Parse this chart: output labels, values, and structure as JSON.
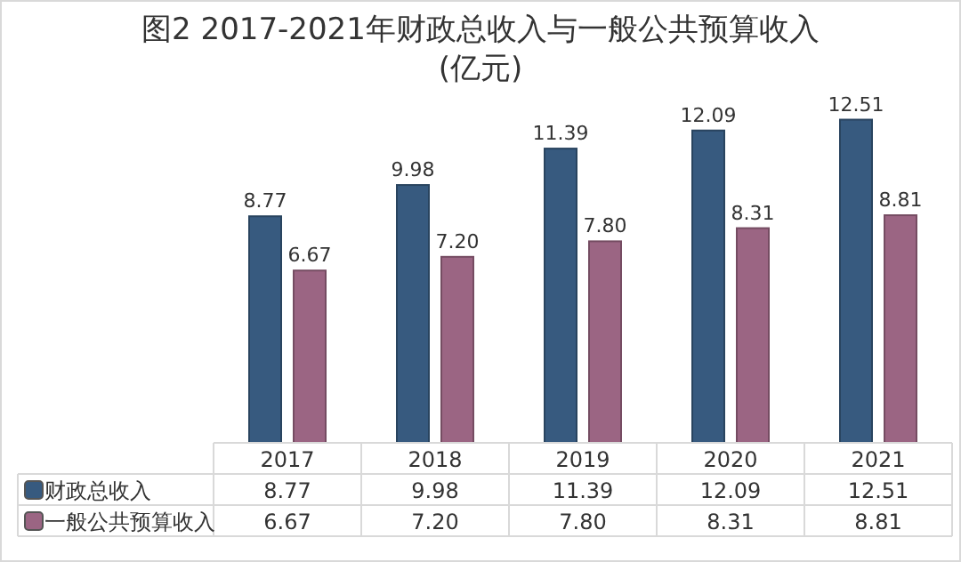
{
  "chart_data": {
    "type": "bar",
    "title": "图2 2017-2021年财政总收入与一般公共预算收入\n(亿元)",
    "categories": [
      "2017",
      "2018",
      "2019",
      "2020",
      "2021"
    ],
    "series": [
      {
        "name": "财政总收入",
        "color": "#375a7f",
        "values": [
          8.77,
          9.98,
          11.39,
          12.09,
          12.51
        ],
        "value_labels": [
          "8.77",
          "9.98",
          "11.39",
          "12.09",
          "12.51"
        ]
      },
      {
        "name": "一般公共预算收入",
        "color": "#9b6583",
        "values": [
          6.67,
          7.2,
          7.8,
          8.31,
          8.81
        ],
        "value_labels": [
          "6.67",
          "7.20",
          "7.80",
          "8.31",
          "8.81"
        ]
      }
    ],
    "legend": "bottom"
  }
}
